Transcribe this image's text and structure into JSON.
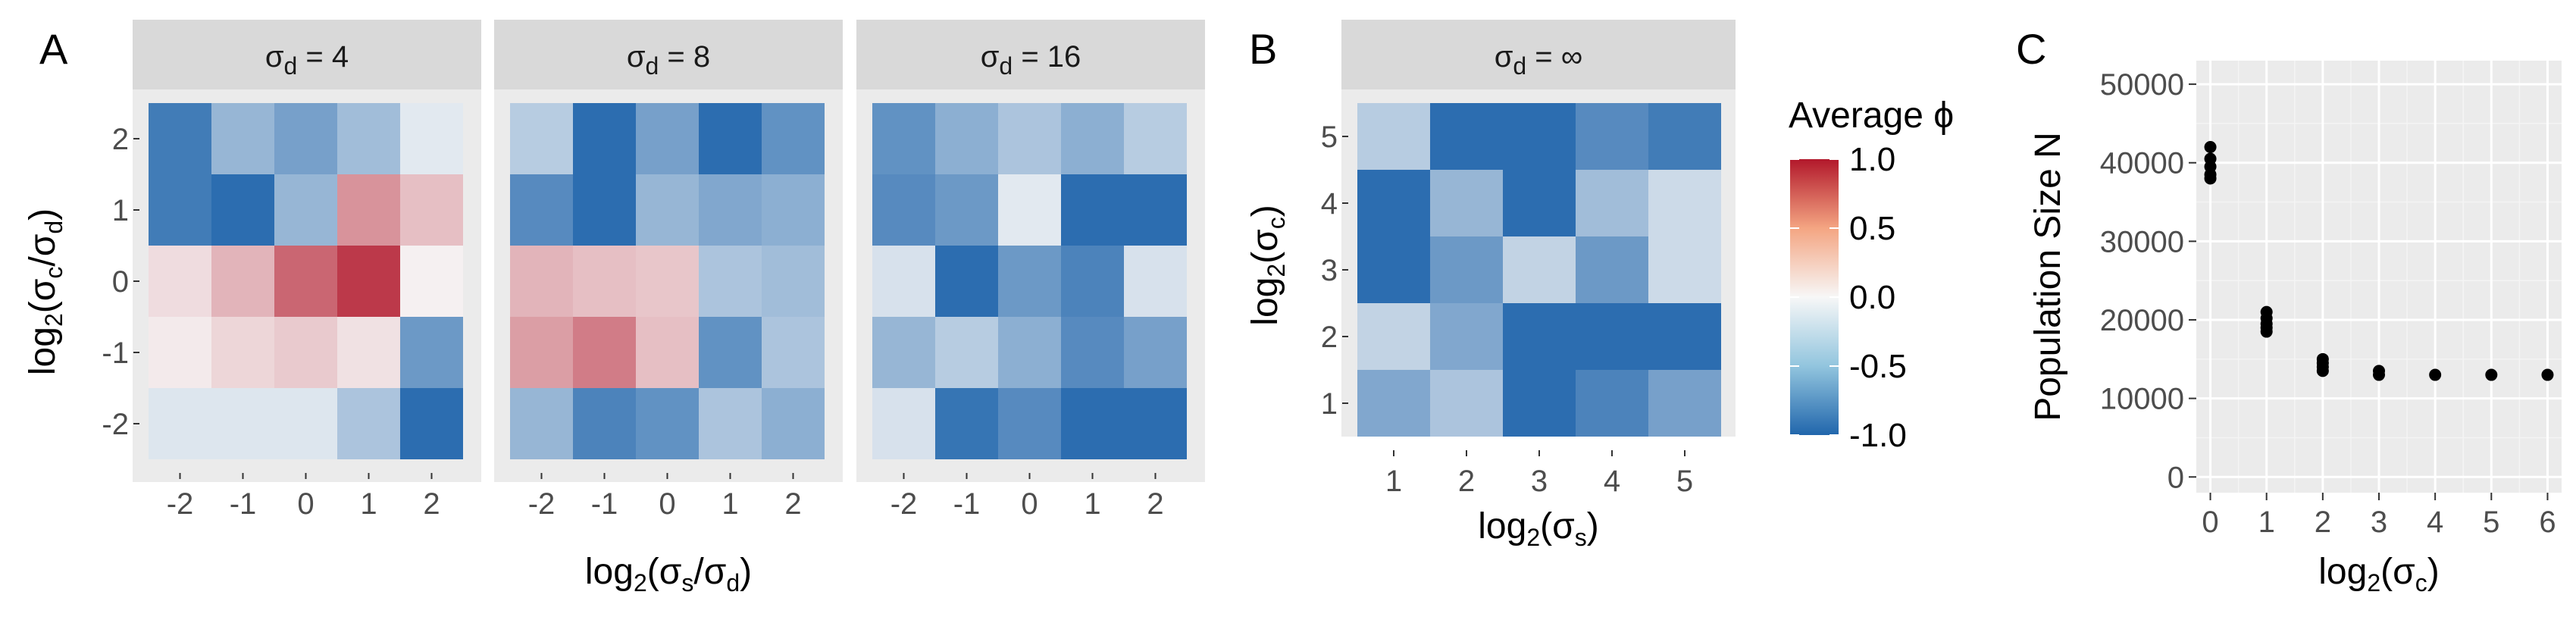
{
  "panel_labels": {
    "a": "A",
    "b": "B",
    "c": "C"
  },
  "facet_strips": {
    "sd4": {
      "sym": "σ",
      "sub": "d",
      "rest": " = 4"
    },
    "sd8": {
      "sym": "σ",
      "sub": "d",
      "rest": " = 8"
    },
    "sd16": {
      "sym": "σ",
      "sub": "d",
      "rest": " = 16"
    },
    "sdinf": {
      "sym": "σ",
      "sub": "d",
      "rest": " = ∞"
    }
  },
  "axis_titles": {
    "a_y": {
      "pre": "log",
      "sub1": "2",
      "body": "(σ",
      "sub2": "c",
      "mid": "/σ",
      "sub3": "d",
      "post": ")"
    },
    "a_x": {
      "pre": "log",
      "sub1": "2",
      "body": "(σ",
      "sub2": "s",
      "mid": "/σ",
      "sub3": "d",
      "post": ")"
    },
    "b_y": {
      "pre": "log",
      "sub1": "2",
      "body": "(σ",
      "sub2": "c",
      "post": ")"
    },
    "b_x": {
      "pre": "log",
      "sub1": "2",
      "body": "(σ",
      "sub2": "s",
      "post": ")"
    },
    "c_y": "Population Size N",
    "c_x": {
      "pre": "log",
      "sub1": "2",
      "body": "(σ",
      "sub2": "c",
      "post": ")"
    }
  },
  "legend": {
    "title": "Average ϕ",
    "ticks": [
      "1.0",
      "0.5",
      "0.0",
      "-0.5",
      "-1.0"
    ],
    "tick_values": [
      1.0,
      0.5,
      0.0,
      -0.5,
      -1.0
    ],
    "colors": {
      "low": "#2166ac",
      "mid": "#f7f7f7",
      "high": "#b2182b"
    }
  },
  "chart_data": [
    {
      "type": "heatmap",
      "panel": "A",
      "facets": [
        "σd = 4",
        "σd = 8",
        "σd = 16"
      ],
      "x_ticks": [
        "-2",
        "-1",
        "0",
        "1",
        "2"
      ],
      "y_ticks": [
        "2",
        "1",
        "0",
        "-1",
        "-2"
      ],
      "xlabel": "log2(σs/σd)",
      "ylabel": "log2(σc/σd)",
      "fill_range": [
        -1,
        1
      ],
      "values_by_facet": [
        [
          [
            -0.85,
            -0.45,
            -0.6,
            -0.4,
            -0.1
          ],
          [
            -0.85,
            -0.95,
            -0.45,
            0.45,
            0.25
          ],
          [
            0.12,
            0.3,
            0.65,
            0.85,
            0.03
          ],
          [
            0.06,
            0.15,
            0.2,
            0.1,
            -0.65
          ],
          [
            -0.12,
            -0.12,
            -0.12,
            -0.35,
            -0.95
          ]
        ],
        [
          [
            -0.3,
            -0.95,
            -0.6,
            -0.95,
            -0.7
          ],
          [
            -0.75,
            -0.95,
            -0.45,
            -0.55,
            -0.5
          ],
          [
            0.3,
            0.25,
            0.22,
            -0.35,
            -0.4
          ],
          [
            0.4,
            0.55,
            0.25,
            -0.7,
            -0.35
          ],
          [
            -0.45,
            -0.8,
            -0.7,
            -0.35,
            -0.5
          ]
        ],
        [
          [
            -0.7,
            -0.5,
            -0.35,
            -0.5,
            -0.3
          ],
          [
            -0.75,
            -0.65,
            -0.1,
            -0.95,
            -0.95
          ],
          [
            -0.15,
            -0.95,
            -0.65,
            -0.8,
            -0.15
          ],
          [
            -0.45,
            -0.3,
            -0.5,
            -0.75,
            -0.6
          ],
          [
            -0.15,
            -0.9,
            -0.75,
            -0.95,
            -0.95
          ]
        ]
      ]
    },
    {
      "type": "heatmap",
      "panel": "B",
      "facets": [
        "σd = ∞"
      ],
      "x_ticks": [
        "1",
        "2",
        "3",
        "4",
        "5"
      ],
      "y_ticks": [
        "5",
        "4",
        "3",
        "2",
        "1"
      ],
      "xlabel": "log2(σs)",
      "ylabel": "log2(σc)",
      "fill_range": [
        -1,
        1
      ],
      "values": [
        [
          -0.3,
          -0.95,
          -0.95,
          -0.75,
          -0.85
        ],
        [
          -0.95,
          -0.45,
          -0.95,
          -0.4,
          -0.2
        ],
        [
          -0.95,
          -0.65,
          -0.25,
          -0.65,
          -0.2
        ],
        [
          -0.25,
          -0.55,
          -0.95,
          -0.95,
          -0.95
        ],
        [
          -0.55,
          -0.35,
          -0.95,
          -0.8,
          -0.6
        ]
      ]
    },
    {
      "type": "scatter",
      "panel": "C",
      "xlabel": "log2(σc)",
      "ylabel": "Population Size N",
      "xlim": [
        -0.25,
        6.25
      ],
      "ylim": [
        -2000,
        53000
      ],
      "x_ticks": [
        0,
        1,
        2,
        3,
        4,
        5,
        6
      ],
      "y_ticks": [
        0,
        10000,
        20000,
        30000,
        40000,
        50000
      ],
      "y_tick_labels": [
        "0",
        "10000",
        "20000",
        "30000",
        "40000",
        "50000"
      ],
      "points": [
        {
          "x": 0,
          "y": 42000
        },
        {
          "x": 0,
          "y": 40500
        },
        {
          "x": 0,
          "y": 39500
        },
        {
          "x": 0,
          "y": 38500
        },
        {
          "x": 0,
          "y": 38000
        },
        {
          "x": 1,
          "y": 21000
        },
        {
          "x": 1,
          "y": 20200
        },
        {
          "x": 1,
          "y": 19500
        },
        {
          "x": 1,
          "y": 19000
        },
        {
          "x": 1,
          "y": 18500
        },
        {
          "x": 2,
          "y": 15000
        },
        {
          "x": 2,
          "y": 14500
        },
        {
          "x": 2,
          "y": 14000
        },
        {
          "x": 2,
          "y": 13500
        },
        {
          "x": 3,
          "y": 13500
        },
        {
          "x": 3,
          "y": 13000
        },
        {
          "x": 4,
          "y": 13000
        },
        {
          "x": 5,
          "y": 13000
        },
        {
          "x": 6,
          "y": 13000
        }
      ]
    }
  ]
}
